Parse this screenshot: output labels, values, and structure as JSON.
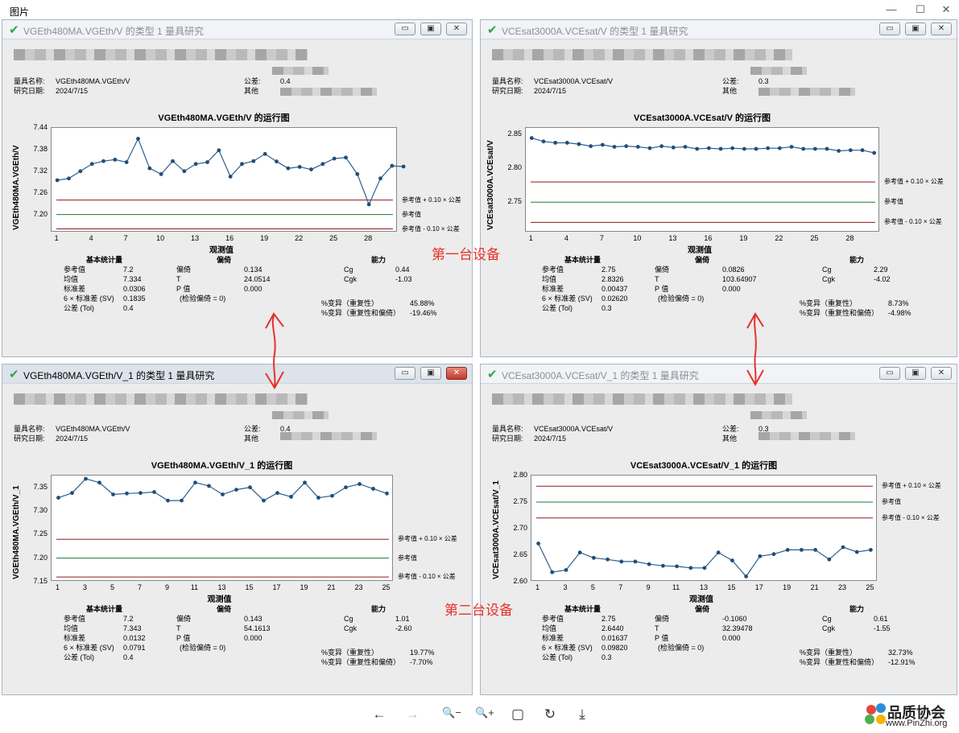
{
  "viewer": {
    "title": "图片",
    "controls": {
      "minimize": "—",
      "maximize": "☐",
      "close": "✕"
    },
    "toolbar": {
      "prev": "←",
      "next": "→",
      "zoom_out": "🔍−",
      "zoom_in": "🔍+",
      "fit": "▢",
      "rotate": "↻",
      "save": "⤓"
    },
    "logo": {
      "name": "品质协会",
      "url": "www.PinZhi.org"
    }
  },
  "annotations": {
    "device1": "第一台设备",
    "device2": "第二台设备"
  },
  "row_labels": {
    "gauge_name": "量具名称:",
    "study_date": "研究日期:",
    "tolerance": "公差:",
    "tolerance_alt": "量",
    "other": "其他",
    "basic_stats": "基本统计量",
    "bias": "偏倚",
    "capability": "能力",
    "ref": "参考值",
    "mean": "均值",
    "sd": "标准差",
    "sv": "6 × 标准差 (SV)",
    "tol": "公差 (Tol)",
    "bias_l": "偏倚",
    "T": "T",
    "p": "P 值",
    "test": "(检验偏倚 = 0)",
    "cg": "Cg",
    "cgk": "Cgk",
    "var_rep": "%变异（重复性）",
    "var_rep_bias": "%变异（重复性和偏倚）",
    "upper": "参考值 + 0.10 × 公差",
    "center": "参考值",
    "lower": "参考值 - 0.10 × 公差",
    "xlabel": "观测值"
  },
  "windows": [
    {
      "title": "VGEth480MA.VGEth/V 的类型 1 量具研究",
      "gauge_name": "VGEth480MA.VGEth/V",
      "study_date": "2024/7/15",
      "tolerance": "0.4",
      "chart_title": "VGEth480MA.VGEth/V 的运行图",
      "ylabel": "VGEth480MA.VGEth/V",
      "stats": {
        "ref": "7.2",
        "mean": "7.334",
        "sd": "0.0306",
        "sv": "0.1835",
        "tol": "0.4"
      },
      "bias": {
        "bias": "0.134",
        "T": "24.0514",
        "p": "0.000"
      },
      "cap": {
        "cg": "0.44",
        "cgk": "-1.03",
        "var_rep": "45.88%",
        "var_rep_bias": "-19.46%"
      }
    },
    {
      "title": "VCEsat3000A.VCEsat/V 的类型 1 量具研究",
      "gauge_name": "VCEsat3000A.VCEsat/V",
      "study_date": "2024/7/15",
      "tolerance": "0.3",
      "chart_title": "VCEsat3000A.VCEsat/V 的运行图",
      "ylabel": "VCEsat3000A.VCEsat/V",
      "stats": {
        "ref": "2.75",
        "mean": "2.8326",
        "sd": "0.00437",
        "sv": "0.02620",
        "tol": "0.3"
      },
      "bias": {
        "bias": "0.0826",
        "T": "103.64907",
        "p": "0.000"
      },
      "cap": {
        "cg": "2.29",
        "cgk": "-4.02",
        "var_rep": "8.73%",
        "var_rep_bias": "-4.98%"
      }
    },
    {
      "title": "VGEth480MA.VGEth/V_1 的类型 1 量具研究",
      "gauge_name": "VGEth480MA.VGEth/V",
      "study_date": "2024/7/15",
      "tolerance": "0.4",
      "chart_title": "VGEth480MA.VGEth/V_1 的运行图",
      "ylabel": "VGEth480MA.VGEth/V_1",
      "stats": {
        "ref": "7.2",
        "mean": "7.343",
        "sd": "0.0132",
        "sv": "0.0791",
        "tol": "0.4"
      },
      "bias": {
        "bias": "0.143",
        "T": "54.1613",
        "p": "0.000"
      },
      "cap": {
        "cg": "1.01",
        "cgk": "-2.60",
        "var_rep": "19.77%",
        "var_rep_bias": "-7.70%"
      }
    },
    {
      "title": "VCEsat3000A.VCEsat/V_1 的类型 1 量具研究",
      "gauge_name": "VCEsat3000A.VCEsat/V",
      "study_date": "2024/7/15",
      "tolerance": "0.3",
      "chart_title": "VCEsat3000A.VCEsat/V_1 的运行图",
      "ylabel": "VCEsat3000A.VCEsat/V_1",
      "stats": {
        "ref": "2.75",
        "mean": "2.6440",
        "sd": "0.01637",
        "sv": "0.09820",
        "tol": "0.3"
      },
      "bias": {
        "bias": "-0.1060",
        "T": "32.39478",
        "p": "0.000"
      },
      "cap": {
        "cg": "0.61",
        "cgk": "-1.55",
        "var_rep": "32.73%",
        "var_rep_bias": "-12.91%"
      }
    }
  ],
  "chart_data": [
    {
      "type": "line",
      "title": "VGEth480MA.VGEth/V 的运行图",
      "xlabel": "观测值",
      "ylabel": "VGEth480MA.VGEth/V",
      "x_ticks": [
        1,
        4,
        7,
        10,
        13,
        16,
        19,
        22,
        25,
        28
      ],
      "y_ticks": [
        7.2,
        7.26,
        7.32,
        7.38,
        7.44
      ],
      "ylim": [
        7.15,
        7.44
      ],
      "xlim": [
        0.5,
        30.5
      ],
      "values": [
        7.295,
        7.3,
        7.32,
        7.34,
        7.348,
        7.352,
        7.345,
        7.41,
        7.328,
        7.312,
        7.348,
        7.32,
        7.34,
        7.345,
        7.378,
        7.305,
        7.34,
        7.348,
        7.368,
        7.347,
        7.328,
        7.332,
        7.325,
        7.34,
        7.355,
        7.358,
        7.312,
        7.228,
        7.3,
        7.335,
        7.333
      ],
      "ref_lines": [
        {
          "name": "参考值 + 0.10 × 公差",
          "value": 7.24,
          "color": "#8b1a1a"
        },
        {
          "name": "参考值",
          "value": 7.2,
          "color": "#1e7a30"
        },
        {
          "name": "参考值 - 0.10 × 公差",
          "value": 7.16,
          "color": "#8b1a1a"
        }
      ],
      "grid": false
    },
    {
      "type": "line",
      "title": "VCEsat3000A.VCEsat/V 的运行图",
      "xlabel": "观测值",
      "ylabel": "VCEsat3000A.VCEsat/V",
      "x_ticks": [
        1,
        4,
        7,
        10,
        13,
        16,
        19,
        22,
        25,
        28
      ],
      "y_ticks": [
        2.75,
        2.8,
        2.85
      ],
      "ylim": [
        2.705,
        2.86
      ],
      "xlim": [
        0.5,
        30.5
      ],
      "values": [
        2.845,
        2.84,
        2.838,
        2.838,
        2.836,
        2.833,
        2.835,
        2.832,
        2.833,
        2.832,
        2.83,
        2.833,
        2.831,
        2.832,
        2.829,
        2.83,
        2.829,
        2.83,
        2.829,
        2.829,
        2.83,
        2.83,
        2.832,
        2.829,
        2.829,
        2.829,
        2.826,
        2.827,
        2.827,
        2.823
      ],
      "ref_lines": [
        {
          "name": "参考值 + 0.10 × 公差",
          "value": 2.78,
          "color": "#8b1a1a"
        },
        {
          "name": "参考值",
          "value": 2.75,
          "color": "#1e7a30"
        },
        {
          "name": "参考值 - 0.10 × 公差",
          "value": 2.72,
          "color": "#8b1a1a"
        }
      ],
      "grid": false
    },
    {
      "type": "line",
      "title": "VGEth480MA.VGEth/V_1 的运行图",
      "xlabel": "观测值",
      "ylabel": "VGEth480MA.VGEth/V_1",
      "x_ticks": [
        1,
        3,
        5,
        7,
        9,
        11,
        13,
        15,
        17,
        19,
        21,
        23,
        25
      ],
      "y_ticks": [
        7.15,
        7.2,
        7.25,
        7.3,
        7.35
      ],
      "ylim": [
        7.15,
        7.375
      ],
      "xlim": [
        0.5,
        25.5
      ],
      "values": [
        7.328,
        7.338,
        7.368,
        7.36,
        7.335,
        7.337,
        7.338,
        7.34,
        7.322,
        7.322,
        7.36,
        7.353,
        7.335,
        7.345,
        7.35,
        7.322,
        7.338,
        7.33,
        7.36,
        7.328,
        7.332,
        7.35,
        7.357,
        7.347,
        7.337
      ],
      "ref_lines": [
        {
          "name": "参考值 + 0.10 × 公差",
          "value": 7.24,
          "color": "#8b1a1a"
        },
        {
          "name": "参考值",
          "value": 7.2,
          "color": "#1e7a30"
        },
        {
          "name": "参考值 - 0.10 × 公差",
          "value": 7.16,
          "color": "#8b1a1a"
        }
      ],
      "grid": false
    },
    {
      "type": "line",
      "title": "VCEsat3000A.VCEsat/V_1 的运行图",
      "xlabel": "观测值",
      "ylabel": "VCEsat3000A.VCEsat/V_1",
      "x_ticks": [
        1,
        3,
        5,
        7,
        9,
        11,
        13,
        15,
        17,
        19,
        21,
        23,
        25
      ],
      "y_ticks": [
        2.6,
        2.65,
        2.7,
        2.75,
        2.8
      ],
      "ylim": [
        2.6,
        2.8
      ],
      "xlim": [
        0.5,
        25.5
      ],
      "values": [
        2.672,
        2.618,
        2.622,
        2.655,
        2.645,
        2.642,
        2.638,
        2.638,
        2.633,
        2.63,
        2.629,
        2.626,
        2.626,
        2.655,
        2.64,
        2.61,
        2.648,
        2.652,
        2.66,
        2.66,
        2.66,
        2.642,
        2.665,
        2.656,
        2.66
      ],
      "ref_lines": [
        {
          "name": "参考值 + 0.10 × 公差",
          "value": 2.78,
          "color": "#8b1a1a"
        },
        {
          "name": "参考值",
          "value": 2.75,
          "color": "#1e7a30"
        },
        {
          "name": "参考值 - 0.10 × 公差",
          "value": 2.72,
          "color": "#8b1a1a"
        }
      ],
      "grid": false
    }
  ]
}
